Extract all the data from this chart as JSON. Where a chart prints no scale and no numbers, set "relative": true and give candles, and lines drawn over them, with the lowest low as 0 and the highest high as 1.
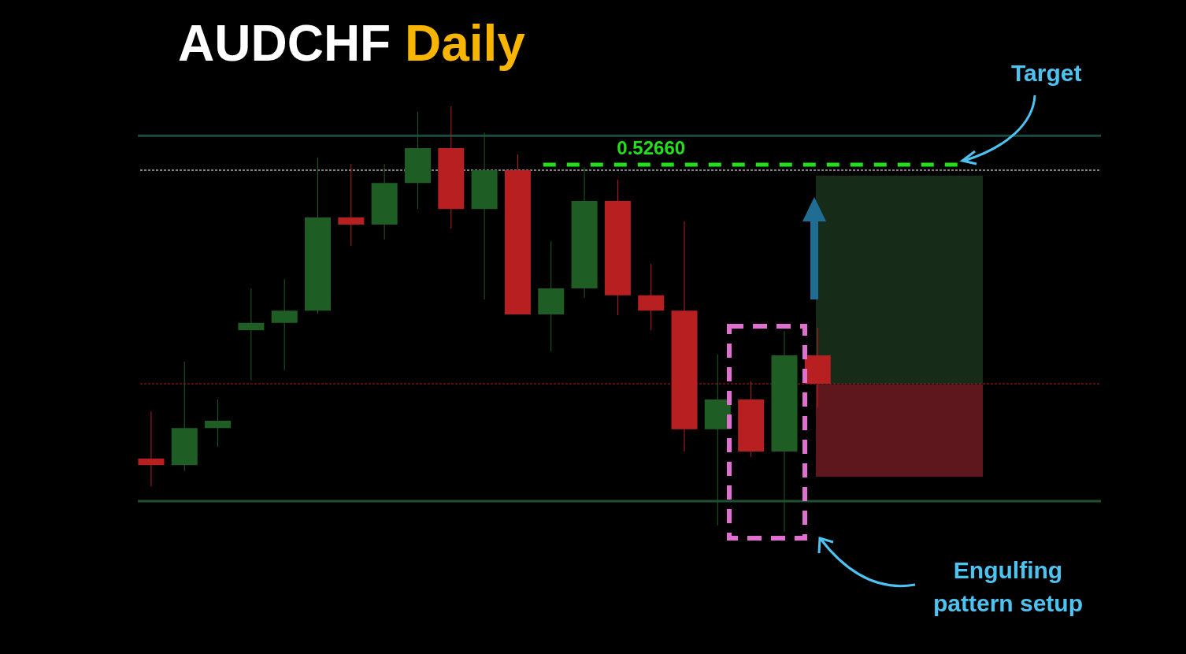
{
  "chart_data": {
    "type": "candlestick",
    "title": "AUDCHF Daily",
    "relative": true,
    "categories": [
      null,
      null,
      null,
      null,
      null,
      null,
      null,
      null,
      null,
      null,
      null,
      null,
      null,
      null,
      null,
      null,
      null,
      null,
      null,
      null,
      null
    ],
    "ohlc": [
      [
        0.172,
        0.283,
        0.107,
        0.157
      ],
      [
        0.157,
        0.4,
        0.143,
        0.244
      ],
      [
        0.244,
        0.311,
        0.2,
        0.261
      ],
      [
        0.474,
        0.572,
        0.356,
        0.491
      ],
      [
        0.491,
        0.594,
        0.38,
        0.52
      ],
      [
        0.52,
        0.88,
        0.513,
        0.739
      ],
      [
        0.739,
        0.865,
        0.672,
        0.722
      ],
      [
        0.722,
        0.865,
        0.687,
        0.82
      ],
      [
        0.82,
        0.987,
        0.759,
        0.902
      ],
      [
        0.902,
        1,
        0.713,
        0.759
      ],
      [
        0.759,
        0.939,
        0.546,
        0.85
      ],
      [
        0.85,
        0.887,
        0.511,
        0.511
      ],
      [
        0.511,
        0.683,
        0.424,
        0.572
      ],
      [
        0.572,
        0.857,
        0.55,
        0.778
      ],
      [
        0.778,
        0.828,
        0.509,
        0.556
      ],
      [
        0.556,
        0.63,
        0.474,
        0.52
      ],
      [
        0.52,
        0.73,
        0.189,
        0.241
      ],
      [
        0.241,
        0.417,
        0.015,
        0.311
      ],
      [
        0.311,
        0.354,
        0.176,
        0.189
      ],
      [
        0.189,
        0.472,
        0,
        0.415
      ],
      [
        0.415,
        0.48,
        0.293,
        0.348
      ]
    ],
    "colors": [
      "#b71f21",
      "#1e5e24",
      "#1e5e24",
      "#1e5e24",
      "#1e5e24",
      "#1e5e24",
      "#b71f21",
      "#1e5e24",
      "#1e5e24",
      "#b71f21",
      "#1e5e24",
      "#b71f21",
      "#1e5e24",
      "#1e5e24",
      "#b71f21",
      "#b71f21",
      "#b71f21",
      "#1e5e24",
      "#b71f21",
      "#1e5e24",
      "#b71f21"
    ],
    "ref_lines": [
      {
        "axis": "y",
        "value": 0.931,
        "color": "#1d4a40",
        "line_style": "solid"
      },
      {
        "axis": "y",
        "value": 0.072,
        "color": "#1f5030",
        "line_style": "solid"
      },
      {
        "axis": "y",
        "value": 0.85,
        "color": "#ffffff",
        "line_style": "dotted"
      },
      {
        "axis": "y",
        "value": 0.348,
        "color": "#b71f21",
        "line_style": "dotted"
      },
      {
        "axis": "y",
        "value": 0.863,
        "color": "#22e01a",
        "line_style": "dashed"
      }
    ],
    "annotations": [
      "Target",
      "Engulfing pattern setup",
      "0.52660"
    ]
  }
}
